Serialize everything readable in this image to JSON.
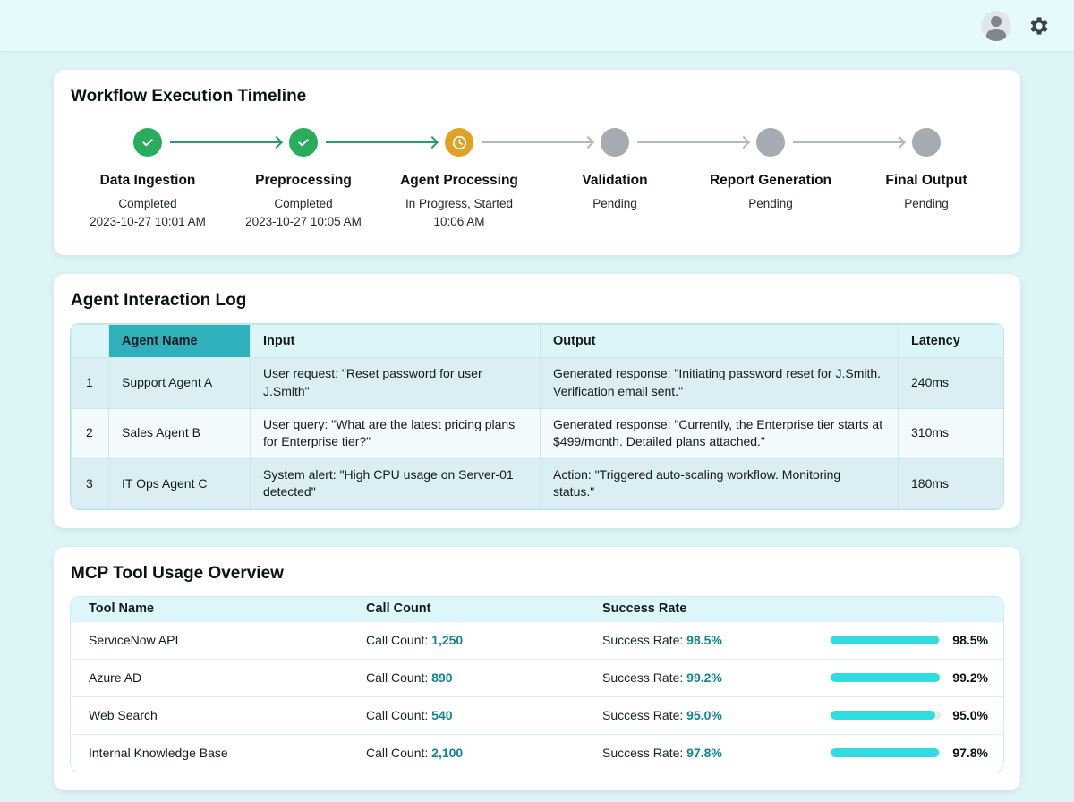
{
  "colors": {
    "page_bg": "#def5f8",
    "topbar_bg": "#e4fafc",
    "completed_green": "#2bab5e",
    "inprogress_amber": "#dfa126",
    "pending_gray": "#a6abb1",
    "arrow_green": "#2d9b72",
    "arrow_gray": "#b4b9be",
    "header_teal_selected": "#2fb0ba",
    "table_header_cyan": "#dcf5f9",
    "row_odd_cyan": "#daeef3",
    "value_teal": "#13858e",
    "progress_cyan": "#32dbe0"
  },
  "timeline": {
    "title": "Workflow Execution Timeline",
    "steps": [
      {
        "name": "Data Ingestion",
        "status": "Completed",
        "detail": "2023-10-27 10:01 AM",
        "state": "completed"
      },
      {
        "name": "Preprocessing",
        "status": "Completed",
        "detail": "2023-10-27 10:05 AM",
        "state": "completed"
      },
      {
        "name": "Agent Processing",
        "status": "In Progress, Started",
        "detail": "10:06 AM",
        "state": "in_progress"
      },
      {
        "name": "Validation",
        "status": "Pending",
        "detail": "",
        "state": "pending"
      },
      {
        "name": "Report Generation",
        "status": "Pending",
        "detail": "",
        "state": "pending"
      },
      {
        "name": "Final Output",
        "status": "Pending",
        "detail": "",
        "state": "pending"
      }
    ]
  },
  "agent_log": {
    "title": "Agent Interaction Log",
    "columns": {
      "num": "",
      "agent": "Agent Name",
      "input": "Input",
      "output": "Output",
      "latency": "Latency"
    },
    "rows": [
      {
        "num": "1",
        "agent": "Support Agent A",
        "input": "User request: \"Reset password for user J.Smith\"",
        "output": "Generated response: \"Initiating password reset for J.Smith. Verification email sent.\"",
        "latency": "240ms"
      },
      {
        "num": "2",
        "agent": "Sales Agent B",
        "input": "User query: \"What are the latest pricing plans for Enterprise tier?\"",
        "output": "Generated response: \"Currently, the Enterprise tier starts at $499/month. Detailed plans attached.\"",
        "latency": "310ms"
      },
      {
        "num": "3",
        "agent": "IT Ops Agent C",
        "input": "System alert: \"High CPU usage on Server-01 detected\"",
        "output": "Action: \"Triggered auto-scaling workflow. Monitoring status.\"",
        "latency": "180ms"
      }
    ]
  },
  "mcp_usage": {
    "title": "MCP Tool Usage Overview",
    "columns": {
      "tool": "Tool Name",
      "count": "Call Count",
      "rate": "Success Rate"
    },
    "count_label": "Call Count: ",
    "rate_label": "Success Rate: ",
    "rows": [
      {
        "tool": "ServiceNow API",
        "call_count": "1,250",
        "success_rate": "98.5%",
        "success_value": 98.5
      },
      {
        "tool": "Azure AD",
        "call_count": "890",
        "success_rate": "99.2%",
        "success_value": 99.2
      },
      {
        "tool": "Web Search",
        "call_count": "540",
        "success_rate": "95.0%",
        "success_value": 95.0
      },
      {
        "tool": "Internal Knowledge Base",
        "call_count": "2,100",
        "success_rate": "97.8%",
        "success_value": 97.8
      }
    ]
  }
}
